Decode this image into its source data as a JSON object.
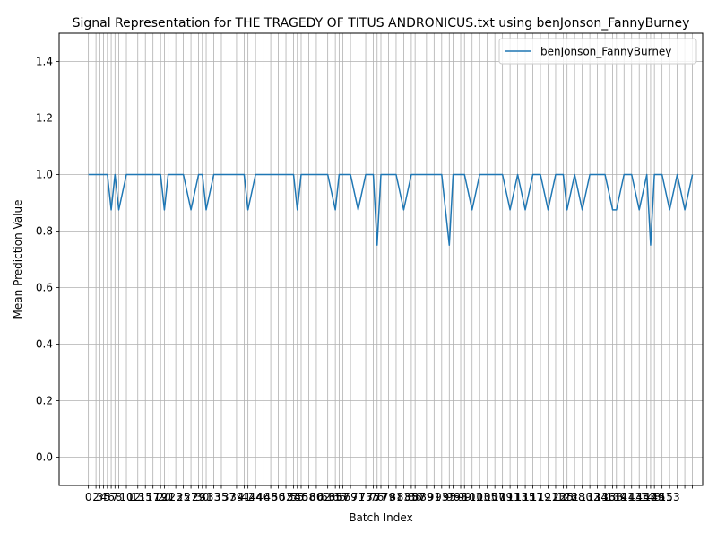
{
  "chart_data": {
    "type": "line",
    "title": "Signal Representation for THE TRAGEDY OF TITUS ANDRONICUS.txt using benJonson_FannyBurney",
    "xlabel": "Batch Index",
    "ylabel": "Mean Prediction Value",
    "ylim": [
      -0.1,
      1.5
    ],
    "xlim": [
      -7.7,
      161.7
    ],
    "grid": true,
    "legend_position": "upper-right",
    "yticks": [
      "0.0",
      "0.2",
      "0.4",
      "0.6",
      "0.8",
      "1.0",
      "1.2",
      "1.4"
    ],
    "xtick_values": [
      0,
      2,
      3,
      4,
      5,
      6,
      7,
      8,
      10,
      12,
      13,
      15,
      17,
      19,
      20,
      21,
      23,
      25,
      27,
      29,
      30,
      31,
      33,
      35,
      37,
      39,
      41,
      42,
      44,
      46,
      48,
      50,
      52,
      54,
      55,
      56,
      58,
      60,
      62,
      63,
      65,
      66,
      67,
      69,
      71,
      73,
      75,
      76,
      77,
      79,
      81,
      83,
      85,
      86,
      87,
      89,
      91,
      93,
      95,
      96,
      98,
      99,
      101,
      103,
      105,
      107,
      109,
      111,
      113,
      115,
      117,
      119,
      121,
      123,
      125,
      126,
      128,
      130,
      132,
      134,
      136,
      138,
      139,
      141,
      143,
      145,
      147,
      148,
      149,
      151,
      153,
      155,
      157,
      159
    ],
    "xtick_labels_visible": [
      "0",
      "2",
      "3",
      "4",
      "5",
      "6",
      "7",
      "8",
      "10",
      "12",
      "13",
      "15",
      "17",
      "19",
      "20",
      "21",
      "23",
      "25",
      "27",
      "29",
      "30",
      "31",
      "33",
      "35",
      "37",
      "39",
      "41",
      "42",
      "44",
      "46",
      "48",
      "50",
      "52",
      "54",
      "55",
      "56",
      "58",
      "60",
      "62",
      "63",
      "65",
      "66",
      "67",
      "69",
      "71",
      "73",
      "75",
      "76",
      "77",
      "79",
      "81",
      "83",
      "85",
      "86",
      "87",
      "89",
      "91",
      "93",
      "95",
      "96",
      "98",
      "99",
      "101",
      "103",
      "105",
      "107",
      "109",
      "111",
      "113",
      "115",
      "117",
      "119",
      "121",
      "123",
      "125",
      "126",
      "128",
      "130",
      "132",
      "134",
      "136",
      "138",
      "139",
      "141",
      "143",
      "145",
      "147",
      "148",
      "149",
      "151",
      "153"
    ],
    "color": "#1f77b4",
    "series": [
      {
        "name": "benJonson_FannyBurney",
        "x": [
          0,
          2,
          3,
          4,
          5,
          6,
          7,
          8,
          10,
          12,
          13,
          15,
          17,
          19,
          20,
          21,
          23,
          25,
          27,
          29,
          30,
          31,
          33,
          35,
          37,
          39,
          41,
          42,
          44,
          46,
          48,
          50,
          52,
          54,
          55,
          56,
          58,
          60,
          62,
          63,
          65,
          66,
          67,
          69,
          71,
          73,
          75,
          76,
          77,
          79,
          81,
          83,
          85,
          86,
          87,
          89,
          91,
          93,
          95,
          96,
          98,
          99,
          101,
          103,
          105,
          107,
          109,
          111,
          113,
          115,
          117,
          119,
          121,
          123,
          125,
          126,
          128,
          130,
          132,
          134,
          136,
          138,
          139,
          141,
          143,
          145,
          147,
          148,
          149,
          151,
          153,
          155,
          157,
          159
        ],
        "values": [
          1.0,
          1.0,
          1.0,
          1.0,
          1.0,
          0.875,
          1.0,
          0.875,
          1.0,
          1.0,
          1.0,
          1.0,
          1.0,
          1.0,
          0.875,
          1.0,
          1.0,
          1.0,
          0.875,
          1.0,
          1.0,
          0.875,
          1.0,
          1.0,
          1.0,
          1.0,
          1.0,
          0.875,
          1.0,
          1.0,
          1.0,
          1.0,
          1.0,
          1.0,
          0.875,
          1.0,
          1.0,
          1.0,
          1.0,
          1.0,
          0.875,
          1.0,
          1.0,
          1.0,
          0.875,
          1.0,
          1.0,
          0.75,
          1.0,
          1.0,
          1.0,
          0.875,
          1.0,
          1.0,
          1.0,
          1.0,
          1.0,
          1.0,
          0.75,
          1.0,
          1.0,
          1.0,
          0.875,
          1.0,
          1.0,
          1.0,
          1.0,
          0.875,
          1.0,
          0.875,
          1.0,
          1.0,
          0.875,
          1.0,
          1.0,
          0.875,
          1.0,
          0.875,
          1.0,
          1.0,
          1.0,
          0.875,
          0.875,
          1.0,
          1.0,
          0.875,
          1.0,
          0.75,
          1.0,
          1.0,
          0.875,
          1.0,
          0.875,
          1.0
        ]
      }
    ]
  }
}
